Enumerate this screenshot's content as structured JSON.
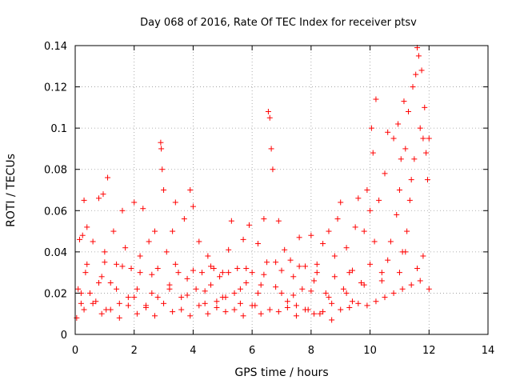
{
  "chart_data": {
    "type": "scatter",
    "title": "Day 068 of 2016, Rate Of TEC Index for receiver ptsv",
    "xlabel": "GPS time / hours",
    "ylabel": "ROTI / TECUs",
    "xlim": [
      0,
      14
    ],
    "ylim": [
      0,
      0.14
    ],
    "xticks": [
      0,
      2,
      4,
      6,
      8,
      10,
      12,
      14
    ],
    "xtick_labels": [
      "0",
      "2",
      "4",
      "6",
      "8",
      "10",
      "12",
      "14"
    ],
    "yticks": [
      0,
      0.02,
      0.04,
      0.06,
      0.08,
      0.1,
      0.12,
      0.14
    ],
    "ytick_labels": [
      "0",
      "0.02",
      "0.04",
      "0.06",
      "0.08",
      "0.1",
      "0.12",
      "0.14"
    ],
    "grid": true,
    "marker": "+",
    "series_color": "#ff0000",
    "series": [
      {
        "name": "ROTI",
        "x": [
          0.05,
          0.1,
          0.15,
          0.2,
          0.25,
          0.3,
          0.35,
          0.4,
          0.5,
          0.6,
          0.7,
          0.8,
          0.9,
          0.95,
          1.0,
          1.05,
          1.1,
          1.2,
          1.3,
          1.4,
          1.5,
          1.6,
          1.7,
          1.8,
          1.9,
          2.0,
          2.1,
          2.2,
          2.3,
          2.4,
          2.5,
          2.6,
          2.7,
          2.8,
          2.9,
          2.92,
          2.95,
          3.0,
          3.1,
          3.2,
          3.3,
          3.4,
          3.5,
          3.6,
          3.7,
          3.8,
          3.9,
          4.0,
          4.1,
          4.2,
          4.3,
          4.4,
          4.5,
          4.6,
          4.7,
          4.8,
          4.9,
          5.0,
          5.1,
          5.2,
          5.3,
          5.4,
          5.5,
          5.6,
          5.7,
          5.8,
          5.9,
          6.0,
          6.1,
          6.2,
          6.3,
          6.4,
          6.5,
          6.55,
          6.6,
          6.65,
          6.7,
          6.8,
          6.9,
          7.0,
          7.1,
          7.2,
          7.3,
          7.4,
          7.5,
          7.6,
          7.7,
          7.8,
          7.9,
          8.0,
          8.1,
          8.2,
          8.3,
          8.4,
          8.5,
          8.6,
          8.7,
          8.8,
          8.9,
          9.0,
          9.1,
          9.2,
          9.3,
          9.4,
          9.5,
          9.6,
          9.7,
          9.8,
          9.9,
          10.0,
          10.05,
          10.1,
          10.15,
          10.2,
          10.3,
          10.4,
          10.5,
          10.6,
          10.7,
          10.8,
          10.9,
          10.95,
          11.0,
          11.05,
          11.1,
          11.15,
          11.2,
          11.25,
          11.3,
          11.35,
          11.4,
          11.45,
          11.5,
          11.55,
          11.6,
          11.65,
          11.7,
          11.75,
          11.8,
          11.85,
          11.9,
          11.95,
          12.0,
          0.3,
          0.6,
          0.9,
          1.2,
          1.5,
          1.8,
          2.1,
          2.4,
          2.7,
          3.0,
          3.3,
          3.6,
          3.9,
          4.2,
          4.5,
          4.8,
          5.1,
          5.4,
          5.7,
          6.0,
          6.3,
          6.6,
          6.9,
          7.2,
          7.5,
          7.8,
          8.1,
          8.4,
          8.7,
          9.0,
          9.3,
          9.6,
          9.9,
          10.2,
          10.5,
          10.8,
          11.1,
          11.4,
          11.7,
          12.0,
          0.2,
          0.8,
          1.4,
          2.0,
          2.6,
          3.2,
          3.8,
          4.4,
          5.0,
          5.6,
          6.2,
          6.8,
          7.4,
          8.0,
          8.6,
          9.2,
          9.8,
          10.4,
          11.0,
          11.6,
          0.4,
          1.0,
          1.6,
          2.2,
          2.8,
          3.4,
          4.0,
          4.6,
          5.2,
          5.8,
          6.4,
          7.0,
          7.6,
          8.2,
          8.8,
          9.4,
          10.0,
          10.6,
          11.2,
          11.8
        ],
        "y": [
          0.008,
          0.022,
          0.046,
          0.015,
          0.048,
          0.012,
          0.03,
          0.052,
          0.02,
          0.045,
          0.016,
          0.066,
          0.028,
          0.068,
          0.04,
          0.012,
          0.076,
          0.025,
          0.05,
          0.034,
          0.015,
          0.06,
          0.042,
          0.018,
          0.032,
          0.064,
          0.022,
          0.038,
          0.061,
          0.014,
          0.045,
          0.029,
          0.05,
          0.018,
          0.093,
          0.09,
          0.08,
          0.07,
          0.04,
          0.022,
          0.05,
          0.064,
          0.03,
          0.018,
          0.056,
          0.027,
          0.07,
          0.062,
          0.022,
          0.045,
          0.03,
          0.015,
          0.038,
          0.024,
          0.032,
          0.016,
          0.028,
          0.03,
          0.018,
          0.041,
          0.055,
          0.02,
          0.032,
          0.015,
          0.046,
          0.025,
          0.053,
          0.03,
          0.014,
          0.044,
          0.024,
          0.056,
          0.035,
          0.108,
          0.105,
          0.09,
          0.08,
          0.035,
          0.055,
          0.02,
          0.041,
          0.016,
          0.036,
          0.028,
          0.014,
          0.047,
          0.022,
          0.033,
          0.012,
          0.048,
          0.026,
          0.034,
          0.01,
          0.044,
          0.02,
          0.05,
          0.015,
          0.038,
          0.056,
          0.064,
          0.022,
          0.042,
          0.03,
          0.016,
          0.052,
          0.066,
          0.025,
          0.05,
          0.07,
          0.06,
          0.1,
          0.088,
          0.045,
          0.114,
          0.065,
          0.03,
          0.078,
          0.098,
          0.045,
          0.095,
          0.058,
          0.102,
          0.07,
          0.085,
          0.04,
          0.113,
          0.09,
          0.05,
          0.108,
          0.065,
          0.075,
          0.12,
          0.085,
          0.126,
          0.139,
          0.135,
          0.1,
          0.128,
          0.095,
          0.11,
          0.088,
          0.075,
          0.095,
          0.065,
          0.015,
          0.01,
          0.012,
          0.008,
          0.014,
          0.01,
          0.013,
          0.009,
          0.015,
          0.011,
          0.012,
          0.009,
          0.014,
          0.01,
          0.013,
          0.011,
          0.012,
          0.009,
          0.014,
          0.01,
          0.012,
          0.011,
          0.013,
          0.009,
          0.012,
          0.01,
          0.011,
          0.007,
          0.012,
          0.013,
          0.015,
          0.014,
          0.016,
          0.018,
          0.02,
          0.022,
          0.024,
          0.026,
          0.022,
          0.02,
          0.025,
          0.022,
          0.018,
          0.02,
          0.024,
          0.019,
          0.021,
          0.018,
          0.022,
          0.02,
          0.023,
          0.019,
          0.021,
          0.018,
          0.02,
          0.024,
          0.026,
          0.03,
          0.032,
          0.034,
          0.035,
          0.033,
          0.03,
          0.032,
          0.034,
          0.031,
          0.033,
          0.03,
          0.032,
          0.029,
          0.031,
          0.033,
          0.03,
          0.028,
          0.031,
          0.034,
          0.036,
          0.04,
          0.038
        ]
      }
    ]
  }
}
